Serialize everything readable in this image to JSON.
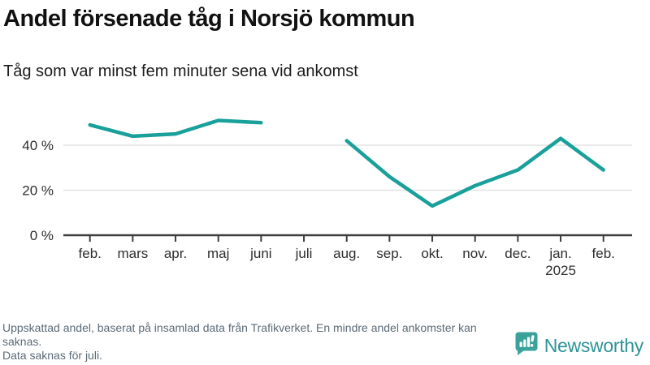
{
  "header": {
    "title": "Andel försenade tåg i Norsjö kommun",
    "subtitle": "Tåg som var minst fem minuter sena vid ankomst"
  },
  "chart_data": {
    "type": "line",
    "categories": [
      "feb.",
      "mars",
      "apr.",
      "maj",
      "juni",
      "juli",
      "aug.",
      "sep.",
      "okt.",
      "nov.",
      "dec.",
      "jan.",
      "feb."
    ],
    "values": [
      49,
      44,
      45,
      51,
      50,
      null,
      42,
      26,
      13,
      22,
      29,
      43,
      29
    ],
    "x_year_label": {
      "index": 11,
      "text": "2025"
    },
    "unit": "%",
    "y_ticks": [
      0,
      20,
      40
    ],
    "y_tick_labels": [
      "0 %",
      "20 %",
      "40 %"
    ],
    "ylim": [
      0,
      59
    ],
    "grid": true,
    "gap_months": [
      "juli"
    ],
    "line_color": "#1aa09a",
    "axis_color": "#3d3d3d",
    "gridline_color": "#e2e2e2",
    "tick_label_color": "#2e2e2e"
  },
  "footer": {
    "notes": [
      "Uppskattad andel, baserat på insamlad data från Trafikverket. En mindre andel ankomster kan saknas.",
      "Data saknas för juli."
    ],
    "brand": {
      "name": "Newsworthy",
      "icon": "bar-chart-speech-bubble-icon",
      "icon_color": "#3aa29b",
      "text_color": "#2d9496"
    }
  }
}
